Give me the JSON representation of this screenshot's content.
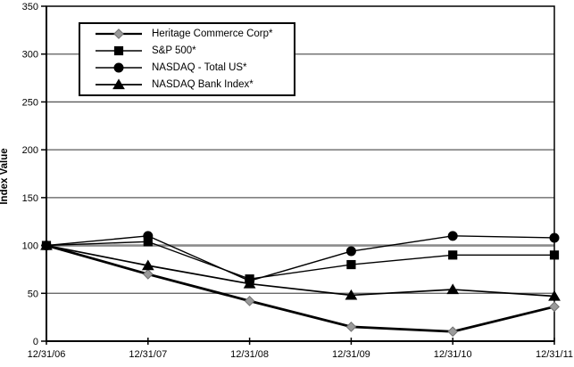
{
  "chart_data": {
    "type": "line",
    "title": "",
    "xlabel": "",
    "ylabel": "Index Value",
    "categories": [
      "12/31/06",
      "12/31/07",
      "12/31/08",
      "12/31/09",
      "12/31/10",
      "12/31/11"
    ],
    "y_axis": {
      "min": 0,
      "max": 350,
      "step": 50,
      "tick_labels": [
        "0",
        "50",
        "100",
        "150",
        "200",
        "250",
        "300",
        "350"
      ],
      "emphasized_tick": 100
    },
    "grid": true,
    "legend_position": "top-left",
    "colors": {
      "axis": "#000000",
      "gridline": "#5a5a5a",
      "emphasized_gridline": "#8c8c8c",
      "heritage_marker": "#9a9a9a"
    },
    "series": [
      {
        "name": "Heritage Commerce Corp*",
        "marker": "diamond",
        "line_color": "#000000",
        "marker_fill": "#9a9a9a",
        "marker_stroke": "#6f6f6f",
        "line_width": 2.8,
        "values": [
          100,
          70,
          42,
          15,
          10,
          36
        ]
      },
      {
        "name": "S&P 500*",
        "marker": "square",
        "line_color": "#000000",
        "marker_fill": "#000000",
        "marker_stroke": "#000000",
        "line_width": 1.4,
        "values": [
          100,
          104,
          65,
          80,
          90,
          90
        ]
      },
      {
        "name": "NASDAQ - Total US*",
        "marker": "circle",
        "line_color": "#000000",
        "marker_fill": "#000000",
        "marker_stroke": "#000000",
        "line_width": 1.4,
        "values": [
          100,
          110,
          63,
          94,
          110,
          108
        ]
      },
      {
        "name": "NASDAQ Bank Index*",
        "marker": "triangle",
        "line_color": "#000000",
        "marker_fill": "#000000",
        "marker_stroke": "#000000",
        "line_width": 1.7,
        "values": [
          100,
          79,
          60,
          48,
          54,
          47
        ]
      }
    ]
  }
}
